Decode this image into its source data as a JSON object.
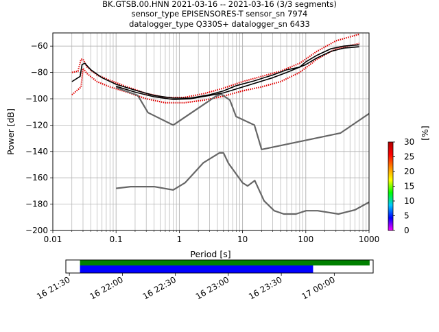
{
  "chart_data": {
    "type": "line",
    "title_lines": [
      "BK.GTSB.00.HNN   2021-03-16 -- 2021-03-16  (3/3 segments)",
      "sensor_type EPISENSORES-T sensor_sn 7974",
      "datalogger_type Q330S+ datalogger_sn 6433"
    ],
    "xlabel": "Period [s]",
    "ylabel": "Power [dB]",
    "xscale": "log",
    "xlim": [
      0.01,
      1000
    ],
    "ylim": [
      -200,
      -50
    ],
    "grid": true,
    "x_ticks": [
      {
        "value": 0.01,
        "label": "0.01"
      },
      {
        "value": 0.1,
        "label": "0.1"
      },
      {
        "value": 1,
        "label": "1"
      },
      {
        "value": 10,
        "label": "10"
      },
      {
        "value": 100,
        "label": "100"
      },
      {
        "value": 1000,
        "label": "1000"
      }
    ],
    "y_ticks": [
      {
        "value": -60,
        "label": "−60"
      },
      {
        "value": -80,
        "label": "−80"
      },
      {
        "value": -100,
        "label": "−100"
      },
      {
        "value": -120,
        "label": "−120"
      },
      {
        "value": -140,
        "label": "−140"
      },
      {
        "value": -160,
        "label": "−160"
      },
      {
        "value": -180,
        "label": "−180"
      },
      {
        "value": -200,
        "label": "−200"
      }
    ],
    "series": [
      {
        "role": "new_high_noise_model",
        "color": "#666666",
        "x": [
          0.1,
          0.22,
          0.32,
          0.8,
          3.8,
          4.6,
          6.3,
          7.9,
          15.4,
          20,
          354.8,
          1000
        ],
        "y": [
          -91.5,
          -97.4,
          -110.5,
          -120.0,
          -98.0,
          -96.5,
          -101.0,
          -113.5,
          -120.0,
          -138.5,
          -126.0,
          -111.3
        ]
      },
      {
        "role": "new_low_noise_model",
        "color": "#666666",
        "x": [
          0.1,
          0.17,
          0.4,
          0.8,
          1.24,
          2.4,
          4.3,
          5.0,
          6.0,
          10.0,
          12.0,
          15.6,
          21.9,
          31.6,
          45.0,
          70.0,
          101.0,
          154.0,
          328.0,
          600.0,
          1000
        ],
        "y": [
          -168.0,
          -166.7,
          -166.7,
          -169.2,
          -163.7,
          -148.6,
          -141.1,
          -141.1,
          -149.0,
          -163.8,
          -166.2,
          -162.1,
          -177.5,
          -185.0,
          -187.5,
          -187.5,
          -185.0,
          -185.0,
          -187.5,
          -184.4,
          -178.5
        ]
      },
      {
        "role": "mean",
        "color": "#000000",
        "x": [
          0.02,
          0.025,
          0.027,
          0.029,
          0.032,
          0.04,
          0.06,
          0.1,
          0.2,
          0.4,
          0.8,
          1.5,
          3,
          5,
          8,
          15,
          30,
          50,
          80,
          100,
          150,
          250,
          400,
          700
        ],
        "y": [
          -87,
          -84,
          -83,
          -74,
          -73,
          -78,
          -84,
          -89,
          -93.5,
          -97.5,
          -99.5,
          -99.5,
          -97,
          -94,
          -90,
          -86.5,
          -82,
          -78,
          -76,
          -72,
          -67,
          -62,
          -60,
          -59
        ]
      },
      {
        "role": "mode",
        "color": "#000000",
        "x": [
          0.1,
          0.2,
          0.4,
          0.8,
          1.5,
          3,
          5,
          8,
          15,
          30,
          50,
          100,
          150,
          250,
          400,
          700
        ],
        "y": [
          -90.5,
          -95,
          -98.5,
          -100.5,
          -100,
          -97.5,
          -95.5,
          -92.5,
          -88.5,
          -84,
          -80,
          -74,
          -69,
          -64,
          -61.5,
          -60.5
        ]
      }
    ],
    "pdf_bands": [
      {
        "x": [
          0.02,
          0.025,
          0.028,
          0.03,
          0.035,
          0.05,
          0.08,
          0.15,
          0.3,
          0.6,
          1.2,
          2.5,
          5,
          10,
          20,
          40,
          80,
          150,
          300,
          700
        ],
        "y": [
          -80,
          -79,
          -70,
          -70,
          -76,
          -82,
          -86,
          -91,
          -96,
          -99,
          -99,
          -96,
          -92,
          -87,
          -83,
          -79,
          -73,
          -64,
          -56,
          -51
        ]
      },
      {
        "x": [
          0.02,
          0.025,
          0.028,
          0.03,
          0.035,
          0.05,
          0.08,
          0.15,
          0.3,
          0.6,
          1.2,
          2.5,
          5,
          10,
          20,
          40,
          80,
          150,
          300,
          700
        ],
        "y": [
          -97,
          -93,
          -91,
          -77,
          -81,
          -87,
          -91,
          -95,
          -100,
          -103,
          -103,
          -101,
          -98,
          -94,
          -91,
          -87,
          -80,
          -70,
          -62,
          -58
        ]
      }
    ],
    "colorbar": {
      "label": "[%]",
      "range": [
        0,
        30
      ],
      "ticks": [
        {
          "value": 0,
          "label": "0"
        },
        {
          "value": 5,
          "label": "5"
        },
        {
          "value": 10,
          "label": "10"
        },
        {
          "value": 15,
          "label": "15"
        },
        {
          "value": 20,
          "label": "20"
        },
        {
          "value": 25,
          "label": "25"
        },
        {
          "value": 30,
          "label": "30"
        }
      ],
      "colors": [
        "#ff00ff",
        "#0000ff",
        "#00c8ff",
        "#00ff00",
        "#ffff00",
        "#ff8800",
        "#ff0000",
        "#b00000"
      ]
    },
    "coverage": {
      "range_minutes": [
        -2,
        172
      ],
      "ticks": [
        {
          "value": 0,
          "label": "16 21:30"
        },
        {
          "value": 30,
          "label": "16 22:00"
        },
        {
          "value": 60,
          "label": "16 22:30"
        },
        {
          "value": 90,
          "label": "16 23:00"
        },
        {
          "value": 120,
          "label": "16 23:30"
        },
        {
          "value": 150,
          "label": "17 00:00"
        }
      ],
      "bars": [
        {
          "role": "data",
          "color": "#008000",
          "start": 6,
          "end": 170
        },
        {
          "role": "used",
          "color": "#0000ff",
          "start": 6,
          "end": 138
        }
      ]
    }
  }
}
